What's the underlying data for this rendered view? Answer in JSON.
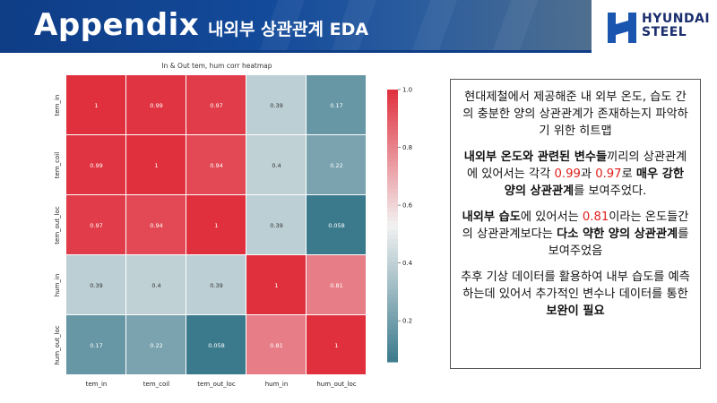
{
  "header": {
    "title": "Appendix",
    "subtitle": "내외부 상관관계 EDA",
    "logo_top": "HYUNDAI",
    "logo_bottom": "STEEL"
  },
  "chart_data": {
    "type": "heatmap",
    "title": "In & Out tem, hum corr heatmap",
    "x_labels": [
      "tem_in",
      "tem_coil",
      "tem_out_loc",
      "hum_in",
      "hum_out_loc"
    ],
    "y_labels": [
      "tem_in",
      "tem_coil",
      "tem_out_loc",
      "hum_in",
      "hum_out_loc"
    ],
    "values": [
      [
        1,
        0.99,
        0.97,
        0.39,
        0.17
      ],
      [
        0.99,
        1,
        0.94,
        0.4,
        0.22
      ],
      [
        0.97,
        0.94,
        1,
        0.39,
        0.058
      ],
      [
        0.39,
        0.4,
        0.39,
        1,
        0.81
      ],
      [
        0.17,
        0.22,
        0.058,
        0.81,
        1
      ]
    ],
    "value_labels": [
      [
        "1",
        "0.99",
        "0.97",
        "0.39",
        "0.17"
      ],
      [
        "0.99",
        "1",
        "0.94",
        "0.4",
        "0.22"
      ],
      [
        "0.97",
        "0.94",
        "1",
        "0.39",
        "0.058"
      ],
      [
        "0.39",
        "0.4",
        "0.39",
        "1",
        "0.81"
      ],
      [
        "0.17",
        "0.22",
        "0.058",
        "0.81",
        "1"
      ]
    ],
    "colorbar": {
      "min": 0.058,
      "max": 1.0,
      "ticks": [
        "1.0",
        "0.8",
        "0.6",
        "0.4",
        "0.2"
      ],
      "tick_values": [
        1.0,
        0.8,
        0.6,
        0.4,
        0.2
      ]
    },
    "colormap": {
      "low": "#3b7a8c",
      "mid": "#f2f2f2",
      "high": "#e0303e"
    }
  },
  "notes": {
    "p1": "현대제철에서 제공해준 내 외부 온도, 습도 간의 충분한 양의 상관관계가 존재하는지 파악하기 위한 히트맵",
    "p2_a": "내외부 온도와 관련된 변수들",
    "p2_b": "끼리의 상관관계에 있어서는 각각 ",
    "p2_c": "0.99",
    "p2_d": "과 ",
    "p2_e": "0.97",
    "p2_f": "로 ",
    "p2_g": "매우 강한 양의 상관관계",
    "p2_h": "를 보여주었다.",
    "p3_a": "내외부 습도",
    "p3_b": "에 있어서는 ",
    "p3_c": "0.81",
    "p3_d": "이라는 온도들간의 상관관계보다는 ",
    "p3_e": "다소 약한 양의 상관관계",
    "p3_f": "를 보여주었음",
    "p4_a": "추후 기상 데이터를 활용하여 내부 습도를 예측하는데 있어서 추가적인 변수나 데이터를 통한 ",
    "p4_b": "보완이 필요"
  }
}
